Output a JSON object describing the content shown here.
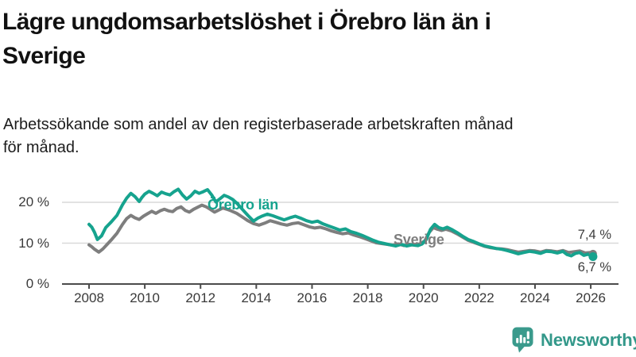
{
  "header": {
    "title_lines": [
      "Lägre ungdomsarbetslöshet i Örebro län än i",
      "Sverige"
    ],
    "subtitle_lines": [
      "Arbetssökande som andel av den registerbaserade arbetskraften månad",
      "för månad."
    ]
  },
  "chart_data": {
    "type": "line",
    "title": "Lägre ungdomsarbetslöshet i Örebro län än i Sverige",
    "subtitle": "Arbetssökande som andel av den registerbaserade arbetskraften månad för månad.",
    "grid": "horizontal",
    "legend_position": "inline-labels",
    "x_range": [
      2008,
      2026.2
    ],
    "ylim": [
      0,
      25
    ],
    "y_ticks": [
      {
        "value": 20,
        "label": "20 %"
      },
      {
        "value": 10,
        "label": "10 %"
      },
      {
        "value": 0,
        "label": "0 %"
      }
    ],
    "x_ticks": [
      {
        "year": 2008,
        "label": "2008"
      },
      {
        "year": 2010,
        "label": "2010"
      },
      {
        "year": 2012,
        "label": "2012"
      },
      {
        "year": 2014,
        "label": "2014"
      },
      {
        "year": 2016,
        "label": "2016"
      },
      {
        "year": 2018,
        "label": "2018"
      },
      {
        "year": 2020,
        "label": "2020"
      },
      {
        "year": 2022,
        "label": "2022"
      },
      {
        "year": 2024,
        "label": "2024"
      },
      {
        "year": 2026,
        "label": "2026"
      }
    ],
    "series": [
      {
        "name": "Sverige",
        "color": "#7e7e7e",
        "end_value_label": "7,4 %",
        "points": [
          [
            2008.0,
            9.6
          ],
          [
            2008.1,
            9.1
          ],
          [
            2008.2,
            8.5
          ],
          [
            2008.35,
            7.8
          ],
          [
            2008.5,
            8.6
          ],
          [
            2008.65,
            9.7
          ],
          [
            2008.8,
            10.8
          ],
          [
            2009.0,
            12.4
          ],
          [
            2009.2,
            14.6
          ],
          [
            2009.35,
            16.0
          ],
          [
            2009.5,
            16.8
          ],
          [
            2009.65,
            16.2
          ],
          [
            2009.8,
            15.8
          ],
          [
            2009.95,
            16.6
          ],
          [
            2010.1,
            17.2
          ],
          [
            2010.25,
            17.8
          ],
          [
            2010.4,
            17.3
          ],
          [
            2010.55,
            17.9
          ],
          [
            2010.7,
            18.3
          ],
          [
            2010.85,
            17.9
          ],
          [
            2011.0,
            17.7
          ],
          [
            2011.15,
            18.5
          ],
          [
            2011.3,
            18.9
          ],
          [
            2011.45,
            18.0
          ],
          [
            2011.6,
            17.6
          ],
          [
            2011.75,
            18.3
          ],
          [
            2011.9,
            18.8
          ],
          [
            2012.05,
            19.3
          ],
          [
            2012.2,
            18.9
          ],
          [
            2012.35,
            18.3
          ],
          [
            2012.5,
            17.6
          ],
          [
            2012.65,
            18.1
          ],
          [
            2012.8,
            18.6
          ],
          [
            2012.95,
            18.3
          ],
          [
            2013.1,
            17.9
          ],
          [
            2013.3,
            17.3
          ],
          [
            2013.5,
            16.4
          ],
          [
            2013.7,
            15.5
          ],
          [
            2013.9,
            14.8
          ],
          [
            2014.1,
            14.4
          ],
          [
            2014.3,
            14.9
          ],
          [
            2014.5,
            15.5
          ],
          [
            2014.7,
            15.1
          ],
          [
            2014.9,
            14.7
          ],
          [
            2015.1,
            14.4
          ],
          [
            2015.3,
            14.8
          ],
          [
            2015.5,
            15.0
          ],
          [
            2015.7,
            14.5
          ],
          [
            2015.9,
            14.0
          ],
          [
            2016.1,
            13.7
          ],
          [
            2016.3,
            13.9
          ],
          [
            2016.5,
            13.5
          ],
          [
            2016.7,
            13.0
          ],
          [
            2016.9,
            12.6
          ],
          [
            2017.1,
            12.3
          ],
          [
            2017.3,
            12.5
          ],
          [
            2017.5,
            12.0
          ],
          [
            2017.7,
            11.6
          ],
          [
            2017.9,
            11.1
          ],
          [
            2018.1,
            10.6
          ],
          [
            2018.3,
            10.1
          ],
          [
            2018.5,
            9.9
          ],
          [
            2018.7,
            9.7
          ],
          [
            2018.9,
            9.5
          ],
          [
            2019.1,
            9.8
          ],
          [
            2019.3,
            9.4
          ],
          [
            2019.5,
            9.7
          ],
          [
            2019.7,
            9.5
          ],
          [
            2019.9,
            9.9
          ],
          [
            2020.05,
            10.6
          ],
          [
            2020.2,
            12.6
          ],
          [
            2020.35,
            13.8
          ],
          [
            2020.5,
            13.4
          ],
          [
            2020.65,
            13.1
          ],
          [
            2020.8,
            13.4
          ],
          [
            2021.0,
            13.0
          ],
          [
            2021.2,
            12.3
          ],
          [
            2021.4,
            11.5
          ],
          [
            2021.6,
            10.7
          ],
          [
            2021.8,
            10.2
          ],
          [
            2022.0,
            9.7
          ],
          [
            2022.2,
            9.2
          ],
          [
            2022.4,
            8.9
          ],
          [
            2022.6,
            8.7
          ],
          [
            2022.8,
            8.6
          ],
          [
            2023.0,
            8.4
          ],
          [
            2023.2,
            8.1
          ],
          [
            2023.4,
            7.8
          ],
          [
            2023.6,
            8.0
          ],
          [
            2023.8,
            8.2
          ],
          [
            2024.0,
            8.1
          ],
          [
            2024.2,
            7.8
          ],
          [
            2024.4,
            8.2
          ],
          [
            2024.6,
            8.1
          ],
          [
            2024.8,
            7.9
          ],
          [
            2025.0,
            8.2
          ],
          [
            2025.2,
            7.7
          ],
          [
            2025.4,
            7.9
          ],
          [
            2025.6,
            8.1
          ],
          [
            2025.8,
            7.6
          ],
          [
            2026.0,
            7.7
          ],
          [
            2026.08,
            7.4
          ]
        ]
      },
      {
        "name": "Örebro län",
        "color": "#16a38e",
        "end_value_label": "6,7 %",
        "points": [
          [
            2008.0,
            14.6
          ],
          [
            2008.1,
            13.9
          ],
          [
            2008.2,
            12.6
          ],
          [
            2008.3,
            10.9
          ],
          [
            2008.45,
            11.8
          ],
          [
            2008.6,
            13.8
          ],
          [
            2008.8,
            15.2
          ],
          [
            2009.0,
            16.8
          ],
          [
            2009.2,
            19.4
          ],
          [
            2009.35,
            21.0
          ],
          [
            2009.5,
            22.2
          ],
          [
            2009.65,
            21.4
          ],
          [
            2009.8,
            20.2
          ],
          [
            2009.9,
            21.2
          ],
          [
            2010.0,
            22.0
          ],
          [
            2010.15,
            22.7
          ],
          [
            2010.3,
            22.2
          ],
          [
            2010.45,
            21.6
          ],
          [
            2010.6,
            22.5
          ],
          [
            2010.75,
            22.1
          ],
          [
            2010.9,
            21.8
          ],
          [
            2011.05,
            22.6
          ],
          [
            2011.2,
            23.2
          ],
          [
            2011.35,
            21.8
          ],
          [
            2011.5,
            20.8
          ],
          [
            2011.65,
            21.6
          ],
          [
            2011.8,
            22.7
          ],
          [
            2011.95,
            22.2
          ],
          [
            2012.1,
            22.6
          ],
          [
            2012.25,
            23.1
          ],
          [
            2012.4,
            21.8
          ],
          [
            2012.55,
            20.1
          ],
          [
            2012.7,
            20.9
          ],
          [
            2012.85,
            21.7
          ],
          [
            2013.0,
            21.3
          ],
          [
            2013.15,
            20.7
          ],
          [
            2013.3,
            19.8
          ],
          [
            2013.5,
            18.3
          ],
          [
            2013.7,
            16.8
          ],
          [
            2013.9,
            15.4
          ],
          [
            2014.05,
            16.1
          ],
          [
            2014.2,
            16.6
          ],
          [
            2014.4,
            17.1
          ],
          [
            2014.6,
            16.7
          ],
          [
            2014.8,
            16.2
          ],
          [
            2015.0,
            15.7
          ],
          [
            2015.2,
            16.2
          ],
          [
            2015.4,
            16.6
          ],
          [
            2015.6,
            16.1
          ],
          [
            2015.8,
            15.5
          ],
          [
            2016.0,
            15.1
          ],
          [
            2016.2,
            15.4
          ],
          [
            2016.4,
            14.7
          ],
          [
            2016.6,
            14.2
          ],
          [
            2016.8,
            13.7
          ],
          [
            2017.0,
            13.2
          ],
          [
            2017.2,
            13.5
          ],
          [
            2017.4,
            12.8
          ],
          [
            2017.6,
            12.4
          ],
          [
            2017.8,
            11.9
          ],
          [
            2018.0,
            11.3
          ],
          [
            2018.2,
            10.7
          ],
          [
            2018.4,
            10.2
          ],
          [
            2018.6,
            9.9
          ],
          [
            2018.8,
            9.6
          ],
          [
            2019.0,
            9.3
          ],
          [
            2019.2,
            9.7
          ],
          [
            2019.4,
            9.3
          ],
          [
            2019.6,
            9.6
          ],
          [
            2019.8,
            9.4
          ],
          [
            2019.95,
            9.8
          ],
          [
            2020.1,
            10.9
          ],
          [
            2020.25,
            13.4
          ],
          [
            2020.4,
            14.6
          ],
          [
            2020.55,
            13.8
          ],
          [
            2020.7,
            13.5
          ],
          [
            2020.85,
            13.9
          ],
          [
            2021.0,
            13.4
          ],
          [
            2021.2,
            12.6
          ],
          [
            2021.4,
            11.7
          ],
          [
            2021.6,
            10.9
          ],
          [
            2021.8,
            10.4
          ],
          [
            2022.0,
            9.8
          ],
          [
            2022.2,
            9.3
          ],
          [
            2022.4,
            9.0
          ],
          [
            2022.6,
            8.7
          ],
          [
            2022.8,
            8.5
          ],
          [
            2023.0,
            8.2
          ],
          [
            2023.2,
            7.8
          ],
          [
            2023.4,
            7.4
          ],
          [
            2023.6,
            7.7
          ],
          [
            2023.8,
            8.0
          ],
          [
            2024.0,
            7.8
          ],
          [
            2024.2,
            7.5
          ],
          [
            2024.4,
            8.0
          ],
          [
            2024.6,
            7.9
          ],
          [
            2024.8,
            7.6
          ],
          [
            2025.0,
            8.0
          ],
          [
            2025.15,
            7.2
          ],
          [
            2025.3,
            6.9
          ],
          [
            2025.45,
            7.5
          ],
          [
            2025.6,
            7.7
          ],
          [
            2025.75,
            7.0
          ],
          [
            2025.9,
            7.3
          ],
          [
            2026.08,
            6.7
          ]
        ]
      }
    ]
  },
  "logo": {
    "text": "Newsworthy",
    "icon": "bar-chart-speech-bubble",
    "color": "#33988a"
  },
  "colors": {
    "orebro_line": "#16a38e",
    "sverige_line": "#7e7e7e",
    "gridline": "#d9d9d9",
    "axis": "#4b4b4b",
    "text": "#111111"
  }
}
